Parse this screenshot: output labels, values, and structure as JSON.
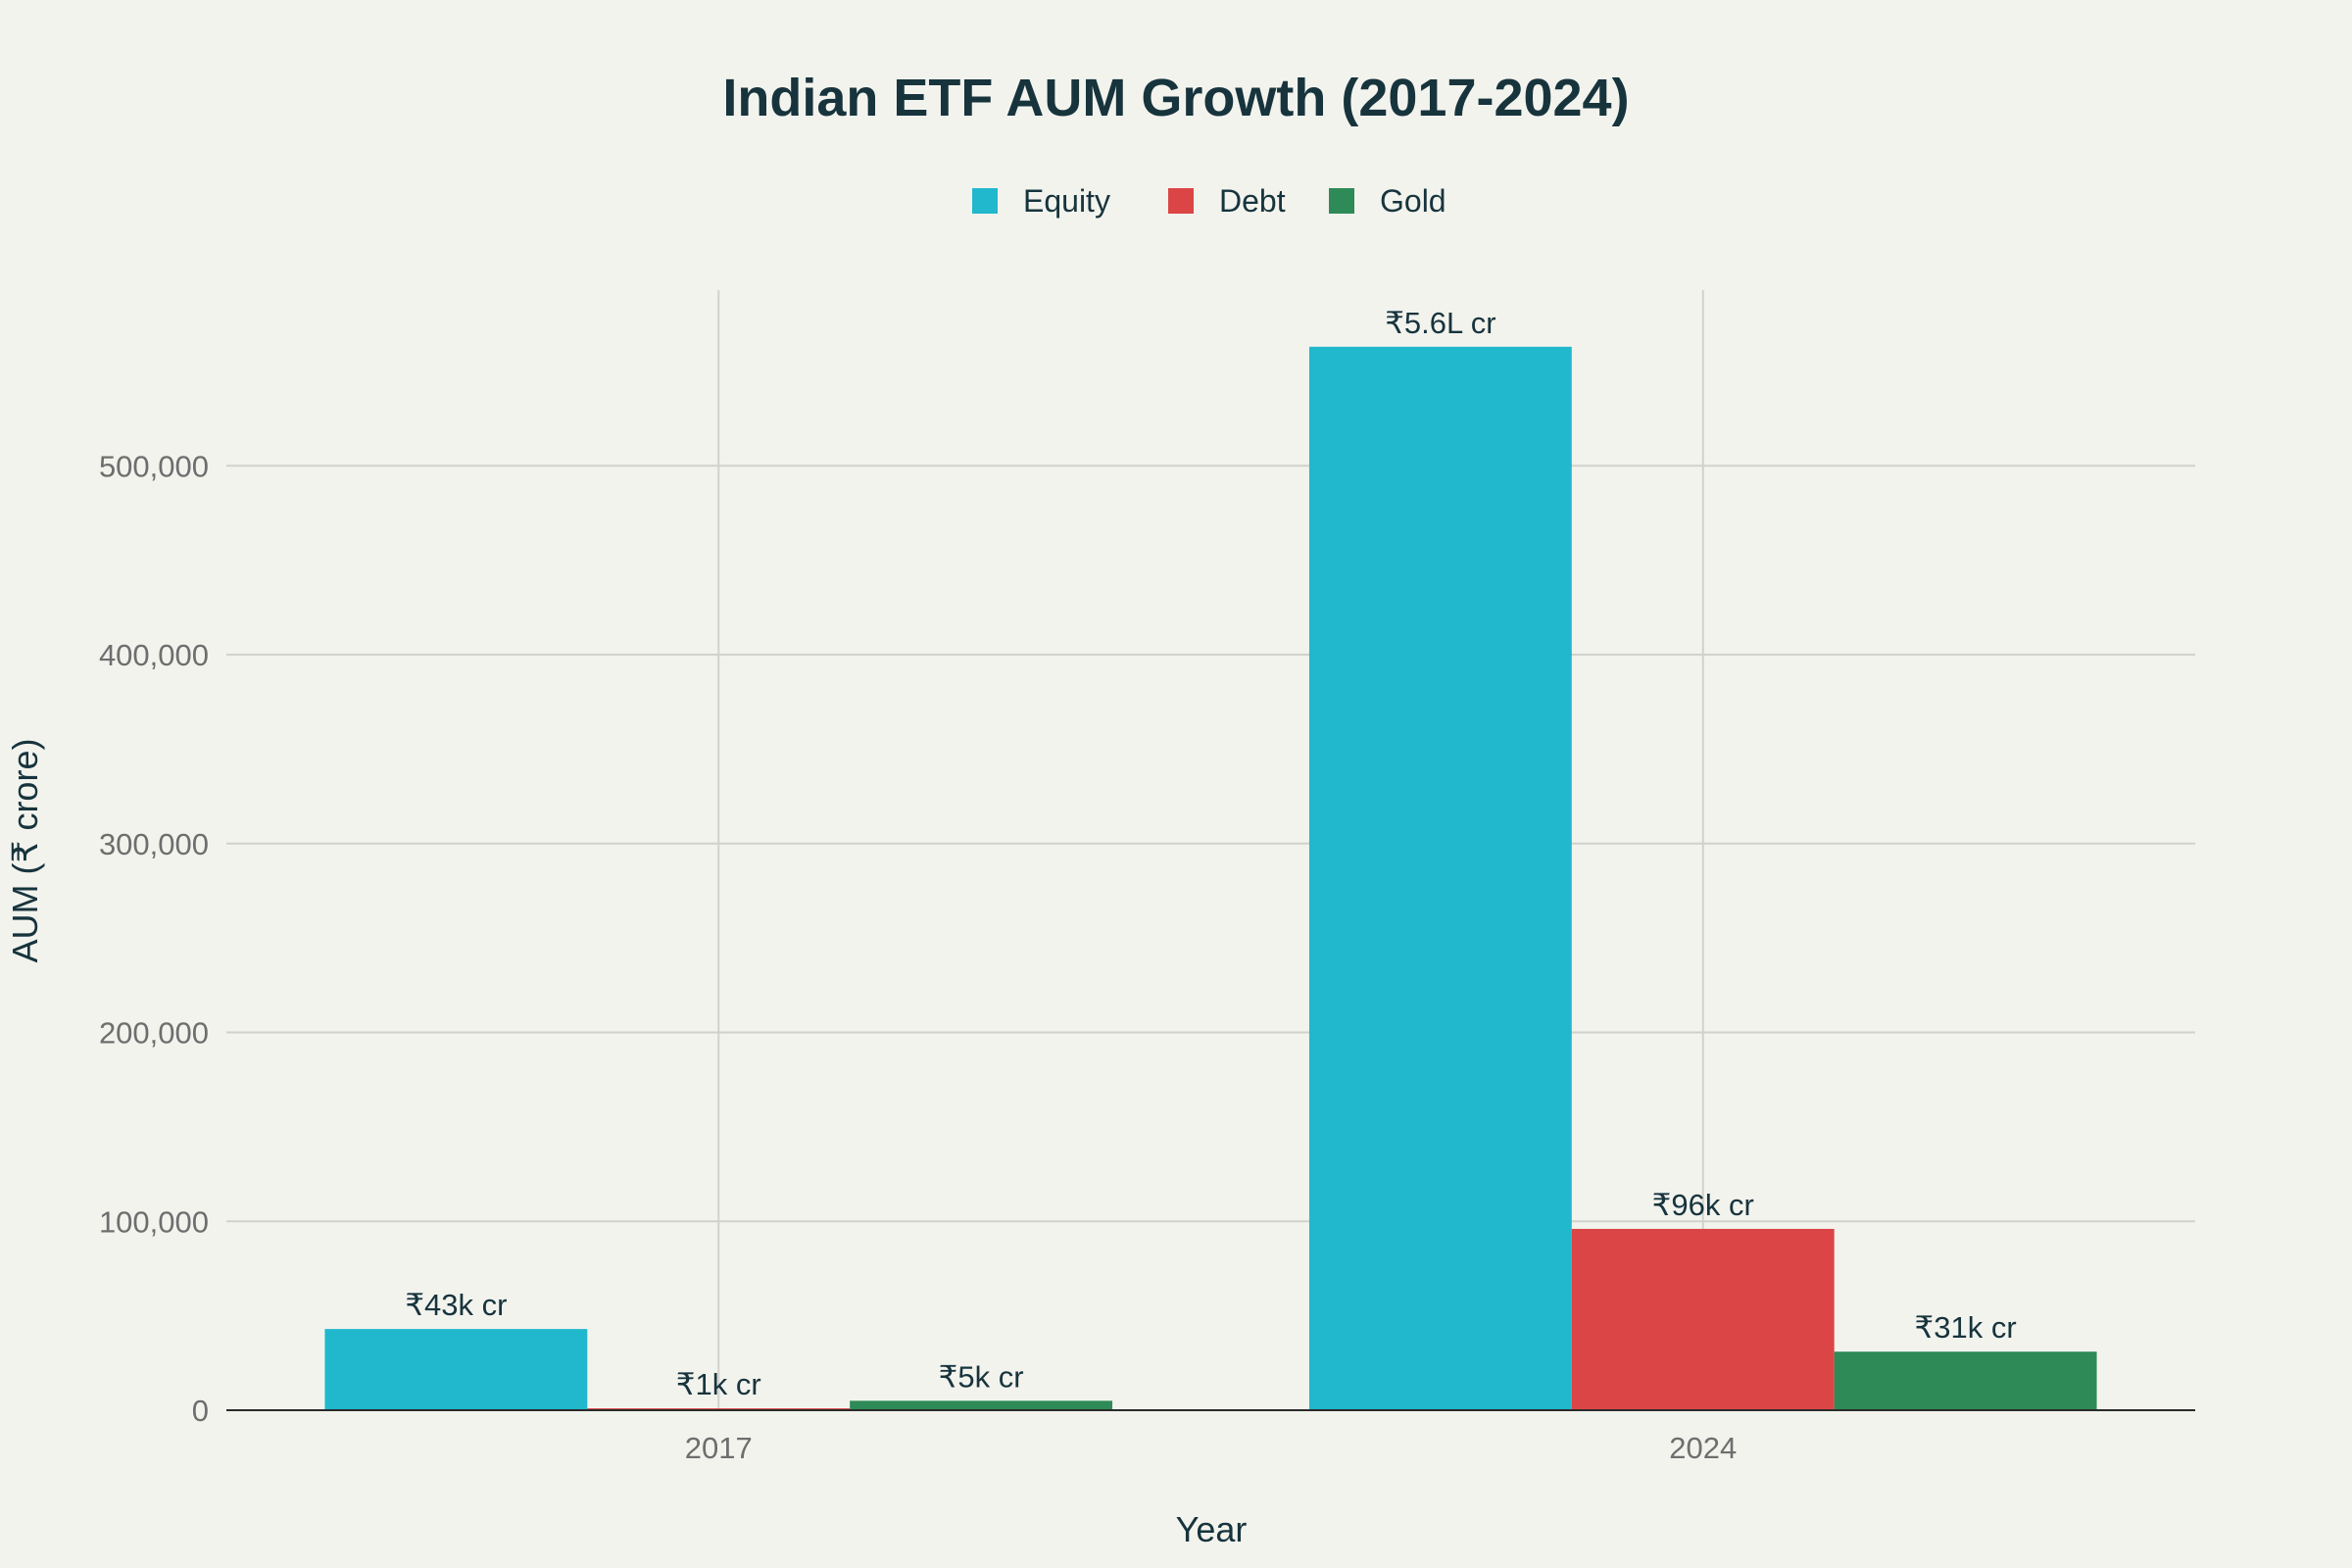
{
  "chart_data": {
    "type": "bar",
    "title": "Indian ETF AUM Growth (2017-2024)",
    "xlabel": "Year",
    "ylabel": "AUM (₹ crore)",
    "categories": [
      "2017",
      "2024"
    ],
    "ylim": [
      0,
      593000
    ],
    "yticks": [
      0,
      100000,
      200000,
      300000,
      400000,
      500000
    ],
    "ytick_labels": [
      "0",
      "100,000",
      "200,000",
      "300,000",
      "400,000",
      "500,000"
    ],
    "legend_position": "top-center",
    "grid": true,
    "series": [
      {
        "name": "Equity",
        "color": "#21b8cd",
        "values": [
          43000,
          563000
        ],
        "labels": [
          "₹43k cr",
          "₹5.6L cr"
        ]
      },
      {
        "name": "Debt",
        "color": "#db4546",
        "values": [
          1000,
          96000
        ],
        "labels": [
          "₹1k cr",
          "₹96k cr"
        ]
      },
      {
        "name": "Gold",
        "color": "#2e8a56",
        "values": [
          5000,
          31000
        ],
        "labels": [
          "₹5k cr",
          "₹31k cr"
        ]
      }
    ]
  }
}
